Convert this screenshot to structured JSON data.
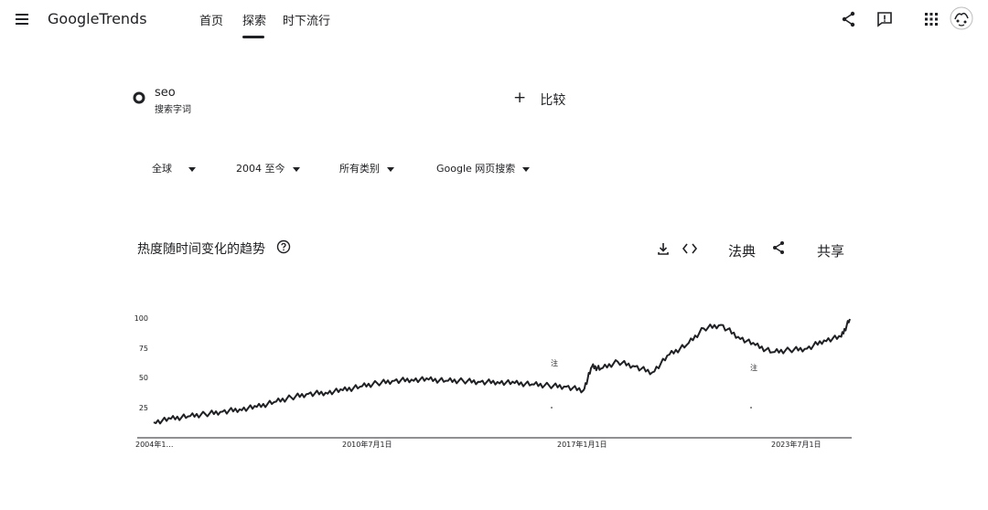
{
  "header": {
    "logo": "GoogleTrends",
    "nav": [
      "首页",
      "探索",
      "时下流行"
    ]
  },
  "search": {
    "term": "seo",
    "term_type": "搜索字词",
    "compare_label": "比较"
  },
  "filters": {
    "region": "全球",
    "time": "2004 至今",
    "category": "所有类别",
    "property": "Google 网页搜索"
  },
  "section": {
    "title": "热度随时间变化的趋势",
    "embed_label": "法典",
    "share_label": "共享"
  },
  "chart_data": {
    "type": "line",
    "ylim": [
      0,
      100
    ],
    "y_ticks": [
      "100",
      "75",
      "50",
      "25"
    ],
    "x_ticks": [
      "2004年1…",
      "2010年7月1日",
      "2017年1月1日",
      "2023年7月1日"
    ],
    "x": [
      "2004-01",
      "2004-07",
      "2005-01",
      "2005-07",
      "2006-01",
      "2006-07",
      "2007-01",
      "2007-07",
      "2008-01",
      "2008-07",
      "2009-01",
      "2009-07",
      "2010-01",
      "2010-07",
      "2011-01",
      "2011-07",
      "2012-01",
      "2012-07",
      "2013-01",
      "2013-07",
      "2014-01",
      "2014-07",
      "2015-01",
      "2015-07",
      "2016-01",
      "2016-07",
      "2016-10",
      "2017-01",
      "2017-07",
      "2018-01",
      "2018-07",
      "2019-01",
      "2019-07",
      "2020-01",
      "2020-07",
      "2021-01",
      "2021-07",
      "2022-01",
      "2022-07",
      "2023-01",
      "2023-07",
      "2024-01",
      "2024-04"
    ],
    "series": [
      {
        "values": [
          13,
          16,
          18,
          20,
          22,
          24,
          26,
          30,
          34,
          37,
          38,
          40,
          43,
          46,
          48,
          49,
          49,
          48,
          48,
          47,
          47,
          46,
          45,
          44,
          43,
          40,
          60,
          58,
          64,
          60,
          55,
          70,
          78,
          92,
          95,
          85,
          78,
          72,
          74,
          75,
          82,
          85,
          100
        ]
      }
    ],
    "annotations": [
      "注",
      "注"
    ],
    "grid": false,
    "legend": "none"
  }
}
